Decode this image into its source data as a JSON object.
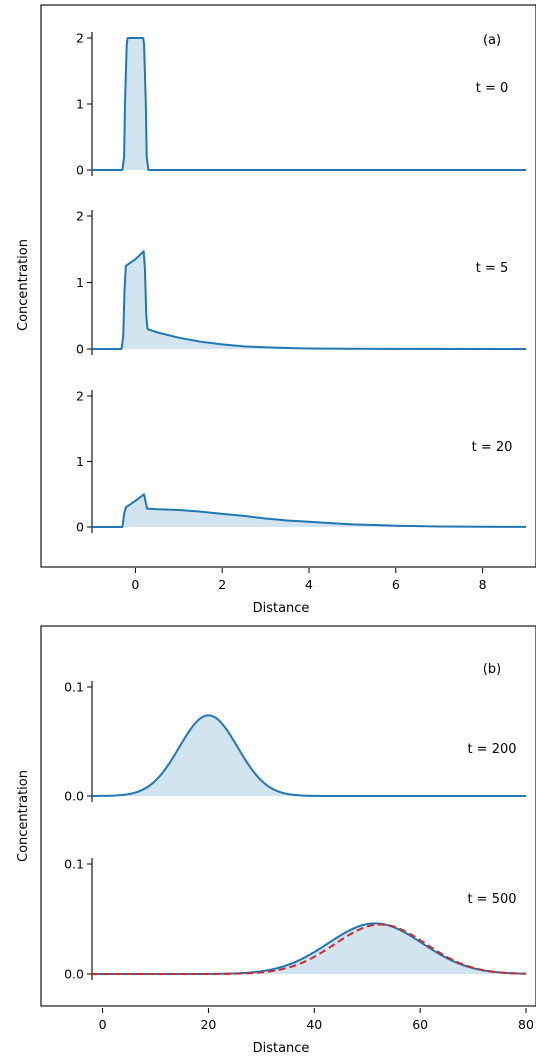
{
  "chart_data": [
    {
      "panel_label": "(a)",
      "type": "area",
      "xlabel": "Distance",
      "ylabel": "Concentration",
      "xlim": [
        -1,
        9
      ],
      "xticks": [
        0,
        2,
        4,
        6,
        8
      ],
      "subplots": [
        {
          "annotation": "t = 0",
          "ylim": [
            0,
            2
          ],
          "yticks": [
            0,
            1,
            2
          ],
          "series": [
            {
              "x": [
                -1,
                -0.3,
                -0.26,
                -0.24,
                -0.2,
                -0.18,
                0.18,
                0.2,
                0.24,
                0.26,
                0.3,
                9
              ],
              "y": [
                0,
                0,
                0.2,
                1.0,
                1.9,
                2.0,
                2.0,
                1.9,
                1.0,
                0.2,
                0,
                0
              ]
            }
          ]
        },
        {
          "annotation": "t = 5",
          "ylim": [
            0,
            2
          ],
          "yticks": [
            0,
            1,
            2
          ],
          "series": [
            {
              "x": [
                -1,
                -0.32,
                -0.28,
                -0.25,
                -0.22,
                0,
                0.19,
                0.22,
                0.25,
                0.28,
                0.5,
                1,
                1.5,
                2,
                2.5,
                3,
                3.5,
                4,
                5,
                6,
                9
              ],
              "y": [
                0,
                0,
                0.2,
                0.9,
                1.25,
                1.35,
                1.47,
                1.2,
                0.5,
                0.3,
                0.25,
                0.17,
                0.11,
                0.07,
                0.04,
                0.025,
                0.015,
                0.008,
                0.003,
                0.001,
                0
              ]
            }
          ]
        },
        {
          "annotation": "t = 20",
          "ylim": [
            0,
            2
          ],
          "yticks": [
            0,
            1,
            2
          ],
          "series": [
            {
              "x": [
                -1,
                -0.3,
                -0.26,
                -0.22,
                0,
                0.2,
                0.23,
                0.27,
                0.5,
                1,
                1.5,
                2,
                2.5,
                3,
                3.5,
                4,
                4.5,
                5,
                6,
                7,
                8,
                9
              ],
              "y": [
                0,
                0,
                0.2,
                0.3,
                0.4,
                0.5,
                0.4,
                0.28,
                0.27,
                0.26,
                0.235,
                0.2,
                0.17,
                0.13,
                0.1,
                0.08,
                0.06,
                0.04,
                0.02,
                0.008,
                0.003,
                0.001
              ]
            }
          ]
        }
      ]
    },
    {
      "panel_label": "(b)",
      "type": "area",
      "xlabel": "Distance",
      "ylabel": "Concentration",
      "xlim": [
        -2,
        80
      ],
      "xticks": [
        0,
        20,
        40,
        60,
        80
      ],
      "subplots": [
        {
          "annotation": "t = 200",
          "ylim": [
            0,
            0.1
          ],
          "yticks": [
            0.0,
            0.1
          ],
          "series": [
            {
              "gaussian": {
                "peak": 0.074,
                "center": 20,
                "sigma": 5.5
              }
            }
          ]
        },
        {
          "annotation": "t = 500",
          "ylim": [
            0,
            0.1
          ],
          "yticks": [
            0.0,
            0.1
          ],
          "series": [
            {
              "gaussian": {
                "peak": 0.046,
                "center": 51.5,
                "sigma": 8.9
              }
            }
          ],
          "reference": {
            "gaussian": {
              "peak": 0.045,
              "center": 52.5,
              "sigma": 8.6
            },
            "color": "#d62728",
            "style": "dashed"
          }
        }
      ]
    }
  ]
}
